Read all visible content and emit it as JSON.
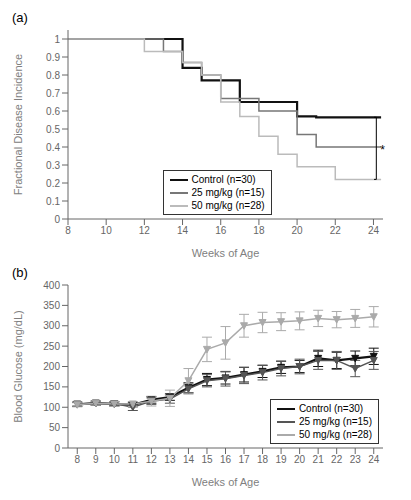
{
  "chart_data": [
    {
      "type": "line",
      "title": "(a)",
      "x_label": "Weeks of Age",
      "y_label": "Fractional Disease Incidence",
      "xlim": [
        8,
        24.5
      ],
      "ylim": [
        0,
        1.05
      ],
      "xticks": [
        8,
        10,
        12,
        14,
        16,
        18,
        20,
        22,
        24
      ],
      "yticks": [
        0,
        0.1,
        0.2,
        0.3,
        0.4,
        0.5,
        0.6,
        0.7,
        0.8,
        0.9,
        1
      ],
      "grid": false,
      "legend": "lower left",
      "line_style": "step",
      "series": [
        {
          "name": "Control (n=30)",
          "color": "#111111",
          "x": [
            8,
            14,
            15,
            17,
            20,
            21,
            24.4
          ],
          "values": [
            1.0,
            0.84,
            0.77,
            0.65,
            0.57,
            0.565,
            0.565
          ]
        },
        {
          "name": "25 mg/kg (n=15)",
          "color": "#777777",
          "x": [
            8,
            13,
            14,
            15,
            16,
            18,
            20,
            21,
            24.4
          ],
          "values": [
            1.0,
            0.93,
            0.87,
            0.8,
            0.67,
            0.6,
            0.47,
            0.4,
            0.4
          ]
        },
        {
          "name": "50 mg/kg (n=28)",
          "color": "#bbbbbb",
          "x": [
            8,
            12,
            14,
            15,
            16,
            17,
            18,
            19,
            20,
            22,
            24.4
          ],
          "values": [
            1.0,
            0.93,
            0.87,
            0.8,
            0.65,
            0.57,
            0.46,
            0.36,
            0.29,
            0.22,
            0.22
          ]
        }
      ],
      "annotations": [
        {
          "text": "*",
          "x": 24.35,
          "y": 0.385
        }
      ],
      "brackets": [
        {
          "x": 24.15,
          "y1": 0.565,
          "y2": 0.22,
          "tick": 0.12
        }
      ]
    },
    {
      "type": "line",
      "title": "(b)",
      "x_label": "Weeks of Age",
      "y_label": "Blood Glucose (mg/dL)",
      "xlim": [
        7.5,
        24.5
      ],
      "ylim": [
        0,
        400
      ],
      "xticks": [
        8,
        9,
        10,
        11,
        12,
        13,
        14,
        15,
        16,
        17,
        18,
        19,
        20,
        21,
        22,
        23,
        24
      ],
      "yticks": [
        0,
        50,
        100,
        150,
        200,
        250,
        300,
        350,
        400
      ],
      "grid": false,
      "legend": "lower right",
      "series": [
        {
          "name": "Control (n=30)",
          "color": "#111111",
          "marker": "triangle-down",
          "x": [
            8,
            9,
            10,
            11,
            12,
            13,
            14,
            15,
            16,
            17,
            18,
            19,
            20,
            21,
            22,
            23,
            24
          ],
          "values": [
            107,
            110,
            108,
            106,
            118,
            125,
            148,
            168,
            172,
            180,
            188,
            198,
            200,
            220,
            215,
            220,
            225
          ],
          "errors": [
            5,
            5,
            5,
            5,
            8,
            8,
            12,
            15,
            15,
            18,
            15,
            15,
            15,
            20,
            20,
            18,
            20
          ]
        },
        {
          "name": "25 mg/kg (n=15)",
          "color": "#555555",
          "marker": "triangle-down",
          "x": [
            8,
            9,
            10,
            11,
            12,
            13,
            14,
            15,
            16,
            17,
            18,
            19,
            20,
            21,
            22,
            23,
            24
          ],
          "values": [
            108,
            110,
            109,
            100,
            115,
            120,
            145,
            165,
            170,
            178,
            185,
            195,
            200,
            215,
            215,
            195,
            215
          ],
          "errors": [
            5,
            5,
            5,
            8,
            8,
            10,
            12,
            15,
            18,
            20,
            18,
            18,
            18,
            22,
            22,
            20,
            22
          ]
        },
        {
          "name": "50 mg/kg (n=28)",
          "color": "#aaaaaa",
          "marker": "triangle-down",
          "x": [
            8,
            9,
            10,
            11,
            12,
            13,
            14,
            15,
            16,
            17,
            18,
            19,
            20,
            21,
            22,
            23,
            24
          ],
          "values": [
            106,
            110,
            108,
            108,
            115,
            122,
            165,
            242,
            258,
            300,
            308,
            310,
            312,
            318,
            315,
            318,
            322
          ],
          "errors": [
            5,
            5,
            6,
            6,
            12,
            20,
            30,
            30,
            40,
            28,
            25,
            22,
            22,
            20,
            20,
            22,
            25
          ]
        }
      ]
    }
  ]
}
